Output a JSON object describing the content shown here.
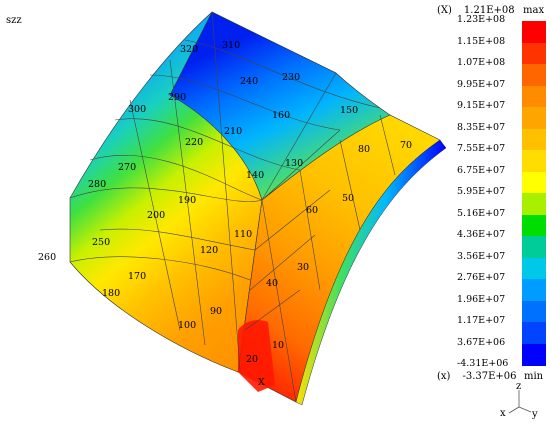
{
  "plot_title": "szz",
  "legend": {
    "max_marker": "(X)",
    "max_value": "1.21E+08",
    "min_marker": "(x)",
    "min_value": "-3.37E+06",
    "max_label": "max",
    "min_label": "min",
    "ticks": [
      "1.23E+08",
      "1.15E+08",
      "1.07E+08",
      "9.95E+07",
      "9.15E+07",
      "8.35E+07",
      "7.55E+07",
      "6.75E+07",
      "5.95E+07",
      "5.16E+07",
      "4.36E+07",
      "3.56E+07",
      "2.76E+07",
      "1.96E+07",
      "1.17E+07",
      "3.67E+06",
      "-4.31E+06"
    ],
    "colors": [
      "#ff0000",
      "#ff3300",
      "#ff6600",
      "#ff8c00",
      "#ffa500",
      "#ffc000",
      "#ffdd00",
      "#ffff00",
      "#a8f000",
      "#00dd00",
      "#00cc99",
      "#00c8e8",
      "#009cff",
      "#0070ff",
      "#0044ff",
      "#0000ff"
    ]
  },
  "element_labels": [
    "320",
    "310",
    "230",
    "240",
    "300",
    "290",
    "210",
    "160",
    "150",
    "220",
    "130",
    "80",
    "70",
    "270",
    "140",
    "280",
    "190",
    "60",
    "50",
    "200",
    "110",
    "250",
    "120",
    "30",
    "260",
    "170",
    "40",
    "180",
    "90",
    "100",
    "10",
    "20"
  ],
  "max_node_marker": "X",
  "axes": {
    "z": "z",
    "x": "x",
    "y": "y"
  }
}
